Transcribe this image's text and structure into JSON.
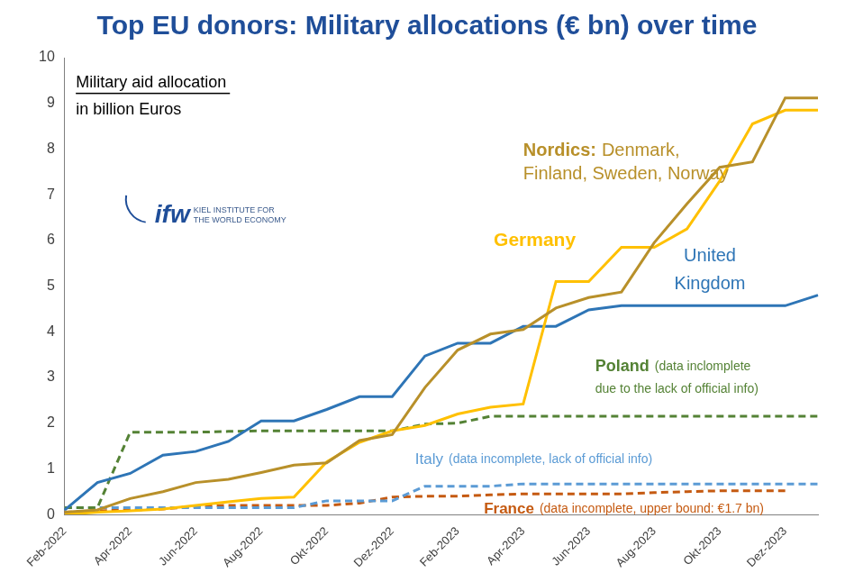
{
  "chart_data": {
    "type": "line",
    "title": "Top EU donors: Military allocations (€ bn) over time",
    "axis_note": [
      "Military aid allocation",
      "in billion Euros"
    ],
    "logo": [
      "ifw",
      "KIEL INSTITUTE FOR",
      "THE WORLD ECONOMY"
    ],
    "categories": [
      "Feb-2022",
      null,
      "Apr-2022",
      null,
      "Jun-2022",
      null,
      "Aug-2022",
      null,
      "Okt-2022",
      null,
      "Dez-2022",
      null,
      "Feb-2023",
      null,
      "Apr-2023",
      null,
      "Jun-2023",
      null,
      "Aug-2023",
      null,
      "Okt-2023",
      null,
      "Dez-2023",
      null
    ],
    "ylim": [
      0,
      10
    ],
    "yticks": [
      0,
      1,
      2,
      3,
      4,
      5,
      6,
      7,
      8,
      9,
      10
    ],
    "grid": false,
    "series": [
      {
        "name": "Nordics:",
        "detail": [
          "Denmark,",
          "Finland, Sweden, Norway"
        ],
        "color": "#b8902a",
        "line_style": "solid",
        "values": [
          0.05,
          0.1,
          0.35,
          0.5,
          0.7,
          0.77,
          0.92,
          1.08,
          1.13,
          1.62,
          1.75,
          2.78,
          3.6,
          3.95,
          4.05,
          4.52,
          4.75,
          4.87,
          5.95,
          6.8,
          7.6,
          7.72,
          9.12,
          9.12
        ]
      },
      {
        "name": "Germany",
        "color": "#ffc000",
        "line_style": "solid",
        "values": [
          0.0,
          0.05,
          0.08,
          0.12,
          0.2,
          0.28,
          0.35,
          0.38,
          1.15,
          1.58,
          1.83,
          1.95,
          2.2,
          2.35,
          2.42,
          5.1,
          5.1,
          5.85,
          5.85,
          6.25,
          7.3,
          8.55,
          8.85,
          8.85
        ]
      },
      {
        "name": "United Kingdom",
        "color": "#2e75b6",
        "line_style": "solid",
        "values": [
          0.1,
          0.7,
          0.9,
          1.3,
          1.38,
          1.6,
          2.05,
          2.05,
          2.3,
          2.58,
          2.58,
          3.47,
          3.75,
          3.75,
          4.12,
          4.12,
          4.48,
          4.57,
          4.57,
          4.57,
          4.57,
          4.57,
          4.57,
          4.8
        ]
      },
      {
        "name": "Poland",
        "detail": [
          "(data inclomplete",
          "due to the lack of official info)"
        ],
        "color": "#548235",
        "line_style": "dashed",
        "values": [
          0.15,
          0.15,
          1.8,
          1.8,
          1.8,
          1.82,
          1.83,
          1.83,
          1.83,
          1.83,
          1.83,
          1.98,
          2.0,
          2.15,
          2.15,
          2.15,
          2.15,
          2.15,
          2.15,
          2.15,
          2.15,
          2.15,
          2.15,
          2.15
        ]
      },
      {
        "name": "Italy",
        "detail": [
          "(data incomplete, lack of official info)"
        ],
        "color": "#5b9bd5",
        "line_style": "dashed",
        "values": [
          0.15,
          0.15,
          0.15,
          0.15,
          0.15,
          0.15,
          0.15,
          0.15,
          0.3,
          0.3,
          0.3,
          0.62,
          0.62,
          0.62,
          0.67,
          0.67,
          0.67,
          0.67,
          0.67,
          0.67,
          0.67,
          0.67,
          0.67,
          0.67
        ]
      },
      {
        "name": "France",
        "detail": [
          "(data incomplete, upper bound: €1.7 bn)"
        ],
        "color": "#c55a11",
        "line_style": "dashed",
        "values": [
          0.05,
          0.08,
          0.1,
          0.12,
          0.18,
          0.2,
          0.2,
          0.2,
          0.2,
          0.25,
          0.38,
          0.4,
          0.4,
          0.43,
          0.45,
          0.45,
          0.45,
          0.45,
          0.48,
          0.5,
          0.52,
          0.52,
          0.52,
          null
        ]
      }
    ]
  }
}
